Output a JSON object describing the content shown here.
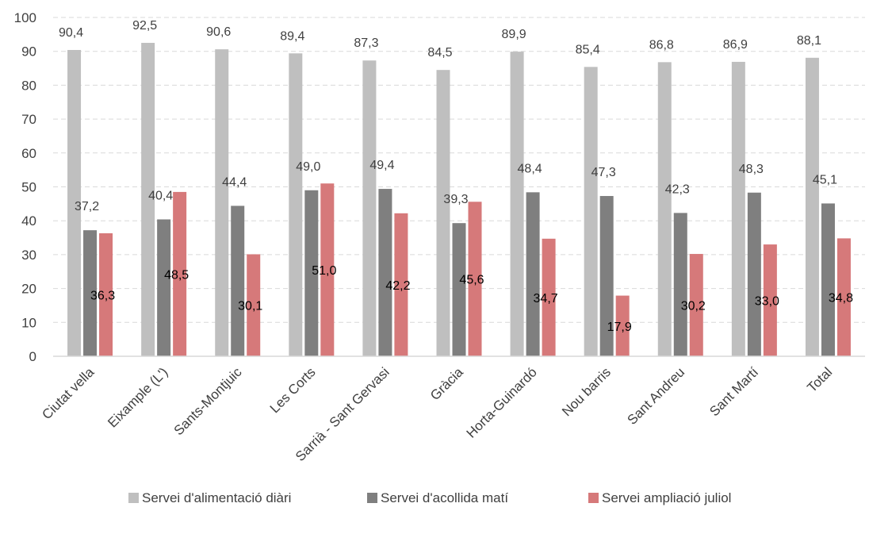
{
  "chart_data": {
    "type": "bar",
    "categories": [
      "Ciutat vella",
      "Eixample (L')",
      "Sants-Montjuic",
      "Les Corts",
      "Sarrià - Sant Gervasi",
      "Gràcia",
      "Horta-Guinardó",
      "Nou barris",
      "Sant Andreu",
      "Sant Martí",
      "Total"
    ],
    "series": [
      {
        "name": "Servei d'alimentació diàri",
        "color": "#bfbfbf",
        "label_color": "#404040",
        "values": [
          90.4,
          92.5,
          90.6,
          89.4,
          87.3,
          84.5,
          89.9,
          85.4,
          86.8,
          86.9,
          88.1
        ],
        "labels": [
          "90,4",
          "92,5",
          "90,6",
          "89,4",
          "87,3",
          "84,5",
          "89,9",
          "85,4",
          "86,8",
          "86,9",
          "88,1"
        ]
      },
      {
        "name": "Servei d'acollida matí",
        "color": "#7f7f7f",
        "label_color": "#404040",
        "values": [
          37.2,
          40.4,
          44.4,
          49.0,
          49.4,
          39.3,
          48.4,
          47.3,
          42.3,
          48.3,
          45.1
        ],
        "labels": [
          "37,2",
          "40,4",
          "44,4",
          "49,0",
          "49,4",
          "39,3",
          "48,4",
          "47,3",
          "42,3",
          "48,3",
          "45,1"
        ]
      },
      {
        "name": "Servei ampliació juliol",
        "color": "#d6797a",
        "label_color": "#000000",
        "values": [
          36.3,
          48.5,
          30.1,
          51.0,
          42.2,
          45.6,
          34.7,
          17.9,
          30.2,
          33.0,
          34.8
        ],
        "labels": [
          "36,3",
          "48,5",
          "30,1",
          "51,0",
          "42,2",
          "45,6",
          "34,7",
          "17,9",
          "30,2",
          "33,0",
          "34,8"
        ]
      }
    ],
    "yticks": [
      "0",
      "10",
      "20",
      "30",
      "40",
      "50",
      "60",
      "70",
      "80",
      "90",
      "100"
    ],
    "ylim": [
      0,
      100
    ],
    "grid": "horizontal-dashed",
    "legend_position": "bottom",
    "title": "",
    "xlabel": "",
    "ylabel": ""
  }
}
